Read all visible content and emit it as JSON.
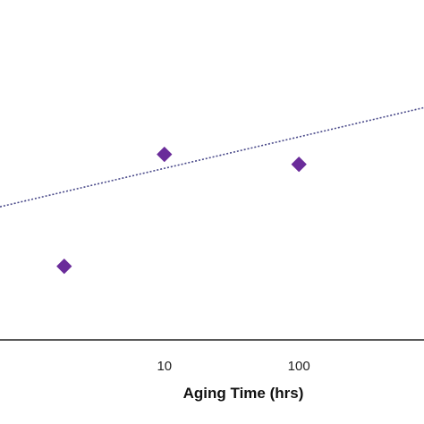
{
  "chart_data": {
    "type": "scatter",
    "title": "",
    "xlabel": "Aging Time (hrs)",
    "ylabel": "",
    "x_scale": "log",
    "x_ticks": [
      10,
      100
    ],
    "x_tick_labels": [
      "10",
      "100"
    ],
    "grid": false,
    "legend": "none",
    "series": [
      {
        "marker": "diamond",
        "color": "#6a2c9a",
        "points": [
          {
            "x": 1.8,
            "y": 0.6
          },
          {
            "x": 10,
            "y": 4.55
          },
          {
            "x": 100,
            "y": 4.2
          }
        ]
      }
    ],
    "trendline": {
      "style": "dotted",
      "color": "#4a4a8a",
      "points": [
        {
          "x": 0.6,
          "y": 2.7
        },
        {
          "x": 850,
          "y": 6.2
        }
      ]
    },
    "xlim": [
      0.6,
      850
    ],
    "ylim": [
      -2,
      10
    ]
  }
}
